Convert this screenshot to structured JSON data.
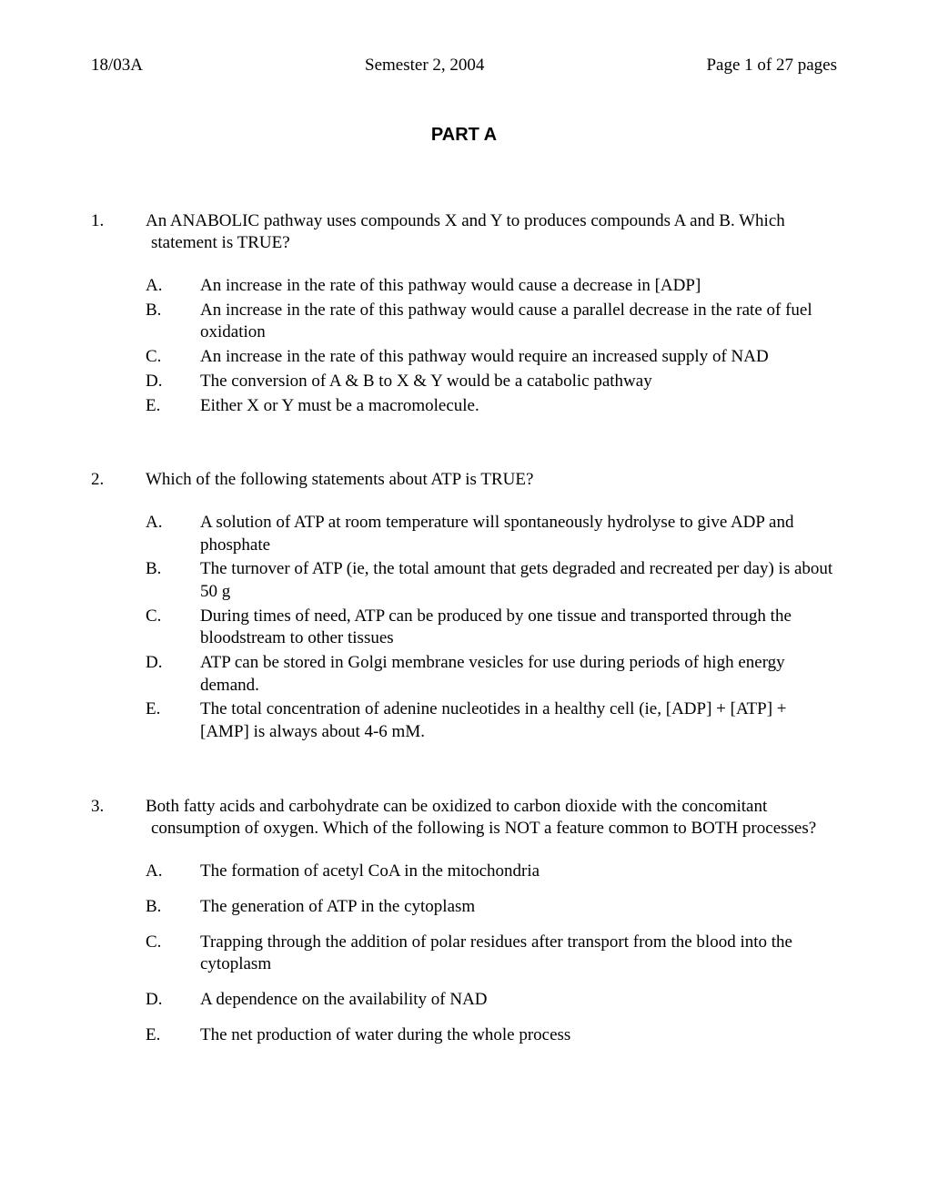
{
  "header": {
    "left": "18/03A",
    "center": "Semester 2, 2004",
    "right": "Page 1 of 27 pages"
  },
  "part_title": "PART A",
  "questions": [
    {
      "num": "1.",
      "stem": "An ANABOLIC pathway uses compounds X and Y to produces compounds A and B. Which statement is TRUE?",
      "options": [
        {
          "letter": "A.",
          "text": "An increase in the rate of this pathway would cause a decrease in [ADP]"
        },
        {
          "letter": "B.",
          "text": "An increase in the rate of this pathway would cause a parallel decrease in the rate of fuel oxidation"
        },
        {
          "letter": "C.",
          "text": "An increase in the rate of this pathway would require an increased supply of NAD"
        },
        {
          "letter": "D.",
          "text": "The conversion of A & B to X & Y would be a catabolic pathway"
        },
        {
          "letter": "E.",
          "text": "Either X or Y must be a macromolecule."
        }
      ],
      "spaced": false
    },
    {
      "num": "2.",
      "stem": "Which of the following statements about ATP is TRUE?",
      "options": [
        {
          "letter": "A.",
          "text": "A solution of ATP at room temperature will spontaneously hydrolyse to give ADP and phosphate"
        },
        {
          "letter": "B.",
          "text": "The turnover of ATP (ie, the total amount that gets degraded and recreated per day) is about 50 g"
        },
        {
          "letter": "C.",
          "text": "During times of need, ATP can be produced by one tissue and transported through the bloodstream to other tissues"
        },
        {
          "letter": "D.",
          "text": "ATP can be stored in Golgi membrane vesicles for use during periods of high energy demand."
        },
        {
          "letter": "E.",
          "text": "The total concentration of adenine nucleotides in a healthy cell (ie, [ADP] + [ATP] + [AMP] is always about 4-6 mM."
        }
      ],
      "spaced": false
    },
    {
      "num": "3.",
      "stem": "Both fatty acids and carbohydrate can be oxidized to carbon dioxide with the concomitant consumption of oxygen.  Which of the following is NOT a feature common to BOTH processes?",
      "options": [
        {
          "letter": "A.",
          "text": "The formation of acetyl CoA in the mitochondria"
        },
        {
          "letter": "B.",
          "text": "The generation of ATP in the cytoplasm"
        },
        {
          "letter": "C.",
          "text": "Trapping through the addition of polar residues after transport from the blood into the cytoplasm"
        },
        {
          "letter": "D.",
          "text": "A dependence on the availability of NAD"
        },
        {
          "letter": "E.",
          "text": "The net production of water during the whole process"
        }
      ],
      "spaced": true
    }
  ]
}
